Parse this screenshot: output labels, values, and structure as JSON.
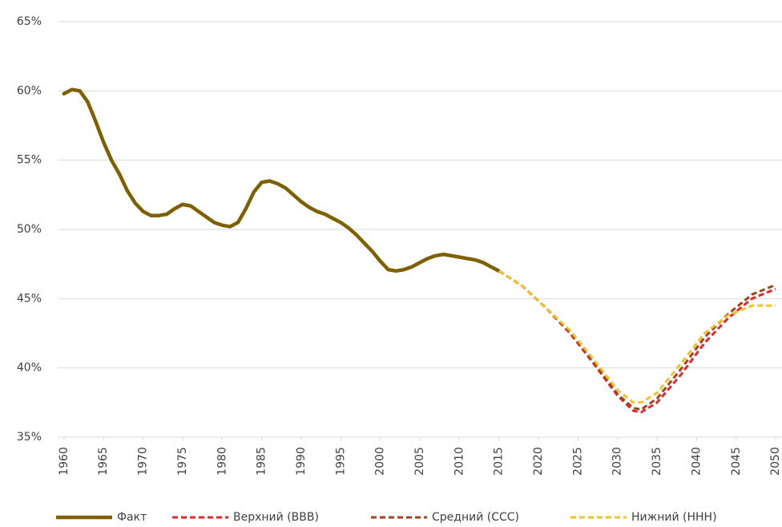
{
  "chart_data": {
    "type": "line",
    "xlim": [
      1959.2,
      2050.8
    ],
    "xticks": [
      1960,
      1965,
      1970,
      1975,
      1980,
      1985,
      1990,
      1995,
      2000,
      2005,
      2010,
      2015,
      2020,
      2025,
      2030,
      2035,
      2040,
      2045,
      2050
    ],
    "ylim": [
      35,
      65
    ],
    "yticks": [
      {
        "value": 35,
        "label": "35%"
      },
      {
        "value": 40,
        "label": "40%"
      },
      {
        "value": 45,
        "label": "45%"
      },
      {
        "value": 50,
        "label": "50%"
      },
      {
        "value": 55,
        "label": "55%"
      },
      {
        "value": 60,
        "label": "60%"
      },
      {
        "value": 65,
        "label": "65%"
      }
    ],
    "grid": true,
    "legend": "bottom",
    "series": [
      {
        "name": "Факт",
        "color": "#7f6000",
        "dash": false,
        "x": [
          1960,
          1961,
          1962,
          1963,
          1964,
          1965,
          1966,
          1967,
          1968,
          1969,
          1970,
          1971,
          1972,
          1973,
          1974,
          1975,
          1976,
          1977,
          1978,
          1979,
          1980,
          1981,
          1982,
          1983,
          1984,
          1985,
          1986,
          1987,
          1988,
          1989,
          1990,
          1991,
          1992,
          1993,
          1994,
          1995,
          1996,
          1997,
          1998,
          1999,
          2000,
          2001,
          2002,
          2003,
          2004,
          2005,
          2006,
          2007,
          2008,
          2009,
          2010,
          2011,
          2012,
          2013,
          2014,
          2015
        ],
        "values": [
          59.8,
          60.1,
          60.0,
          59.2,
          57.8,
          56.3,
          55.0,
          54.0,
          52.8,
          51.9,
          51.3,
          51.0,
          51.0,
          51.1,
          51.5,
          51.8,
          51.7,
          51.3,
          50.9,
          50.5,
          50.3,
          50.2,
          50.5,
          51.5,
          52.7,
          53.4,
          53.5,
          53.3,
          53.0,
          52.5,
          52.0,
          51.6,
          51.3,
          51.1,
          50.8,
          50.5,
          50.1,
          49.6,
          49.0,
          48.4,
          47.7,
          47.1,
          47.0,
          47.1,
          47.3,
          47.6,
          47.9,
          48.1,
          48.2,
          48.1,
          48.0,
          47.9,
          47.8,
          47.6,
          47.3,
          47.0
        ]
      },
      {
        "name": "Верхний (ВВВ)",
        "color": "#e8262a",
        "dash": true,
        "x": [
          2015,
          2018,
          2021,
          2024,
          2027,
          2030,
          2032,
          2033,
          2035,
          2038,
          2041,
          2044,
          2047,
          2050
        ],
        "values": [
          47.0,
          45.9,
          44.3,
          42.5,
          40.3,
          38.0,
          36.9,
          36.8,
          37.5,
          39.5,
          41.8,
          43.6,
          45.0,
          45.7
        ]
      },
      {
        "name": "Средний (ССС)",
        "color": "#a5421c",
        "dash": true,
        "x": [
          2015,
          2018,
          2021,
          2024,
          2027,
          2030,
          2032,
          2033,
          2035,
          2038,
          2041,
          2044,
          2047,
          2050
        ],
        "values": [
          47.0,
          45.9,
          44.3,
          42.6,
          40.4,
          38.1,
          37.1,
          37.0,
          37.8,
          39.9,
          42.2,
          43.9,
          45.3,
          46.0
        ]
      },
      {
        "name": "Нижний (ННН)",
        "color": "#f2c12e",
        "dash": true,
        "x": [
          2015,
          2018,
          2021,
          2024,
          2027,
          2030,
          2032,
          2033,
          2035,
          2038,
          2041,
          2044,
          2047,
          2050
        ],
        "values": [
          47.0,
          45.9,
          44.3,
          42.7,
          40.6,
          38.4,
          37.5,
          37.5,
          38.2,
          40.3,
          42.5,
          43.8,
          44.5,
          44.5
        ]
      }
    ]
  }
}
